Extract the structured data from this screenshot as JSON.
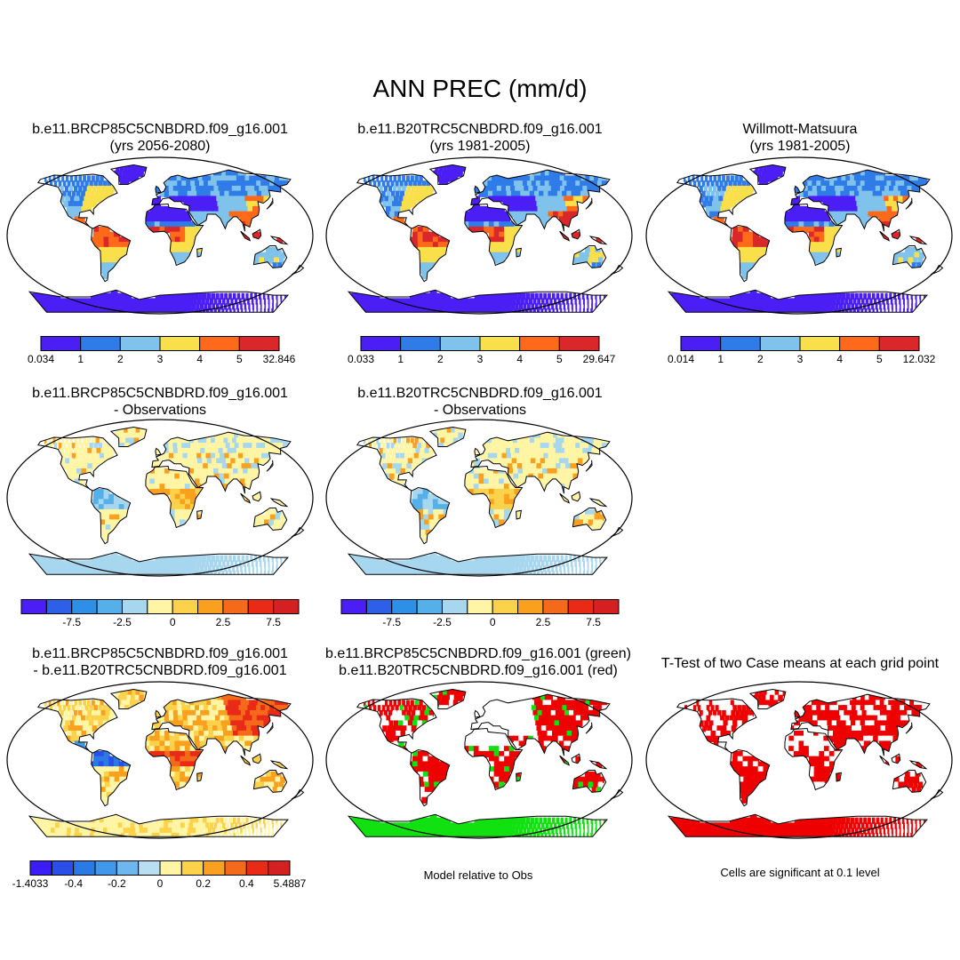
{
  "title": "ANN PREC (mm/d)",
  "colors": {
    "abs": [
      "#4a1ef5",
      "#2f7be8",
      "#7fc3ec",
      "#f9e04a",
      "#ff6a1a",
      "#d9272a"
    ],
    "diff": [
      "#4a1ef5",
      "#2e5fe8",
      "#2e8fe6",
      "#55b0ea",
      "#a7d6ef",
      "#fff5a4",
      "#fbd24a",
      "#f9a01e",
      "#f56a1a",
      "#e82a16",
      "#d42020"
    ],
    "pair": [
      "#3a1ef5",
      "#2a4ee8",
      "#2a7ae6",
      "#3f98ea",
      "#6db7ee",
      "#b8def1",
      "#fff5a4",
      "#fbd24a",
      "#f9a01e",
      "#f56a1a",
      "#e82a16",
      "#d42020"
    ],
    "sig_red": "#ee0000",
    "sig_green": "#11e011"
  },
  "panels": [
    {
      "id": "p1",
      "title1": "b.e11.BRCP85C5CNBDRD.f09_g16.001",
      "title2": "(yrs 2056-2080)",
      "scheme": "abs",
      "colorbar": {
        "scheme": "abs",
        "labels": [
          "0.034",
          "1",
          "2",
          "3",
          "4",
          "5",
          "32.846"
        ]
      }
    },
    {
      "id": "p2",
      "title1": "b.e11.B20TRC5CNBDRD.f09_g16.001",
      "title2": "(yrs 1981-2005)",
      "scheme": "abs",
      "colorbar": {
        "scheme": "abs",
        "labels": [
          "0.033",
          "1",
          "2",
          "3",
          "4",
          "5",
          "29.647"
        ]
      }
    },
    {
      "id": "p3",
      "title1": "Willmott-Matsuura",
      "title2": "(yrs 1981-2005)",
      "scheme": "abs",
      "colorbar": {
        "scheme": "abs",
        "labels": [
          "0.014",
          "1",
          "2",
          "3",
          "4",
          "5",
          "12.032"
        ]
      }
    },
    {
      "id": "p4",
      "title1": "b.e11.BRCP85C5CNBDRD.f09_g16.001",
      "title2": "- Observations",
      "scheme": "diff",
      "colorbar": {
        "scheme": "diff",
        "labels": [
          "-7.5",
          "-2.5",
          "0",
          "2.5",
          "7.5"
        ]
      }
    },
    {
      "id": "p5",
      "title1": "b.e11.B20TRC5CNBDRD.f09_g16.001",
      "title2": "- Observations",
      "scheme": "diff",
      "colorbar": {
        "scheme": "diff",
        "labels": [
          "-7.5",
          "-2.5",
          "0",
          "2.5",
          "7.5"
        ]
      }
    },
    {
      "id": "p6",
      "title1": "b.e11.BRCP85C5CNBDRD.f09_g16.001",
      "title2": "- b.e11.B20TRC5CNBDRD.f09_g16.001",
      "scheme": "pair",
      "colorbar": {
        "scheme": "pair",
        "labels": [
          "-1.4033",
          "-0.4",
          "-0.2",
          "0",
          "0.2",
          "0.4",
          "5.4887"
        ]
      }
    },
    {
      "id": "p7",
      "title1": "b.e11.BRCP85C5CNBDRD.f09_g16.001 (green)",
      "title2": "b.e11.B20TRC5CNBDRD.f09_g16.001 (red)",
      "scheme": "sig2",
      "note": "Model relative to Obs"
    },
    {
      "id": "p8",
      "title1": "T-Test of two Case means at each grid point",
      "title2": "",
      "scheme": "sig1",
      "note": "Cells are significant at 0.1 level"
    }
  ]
}
